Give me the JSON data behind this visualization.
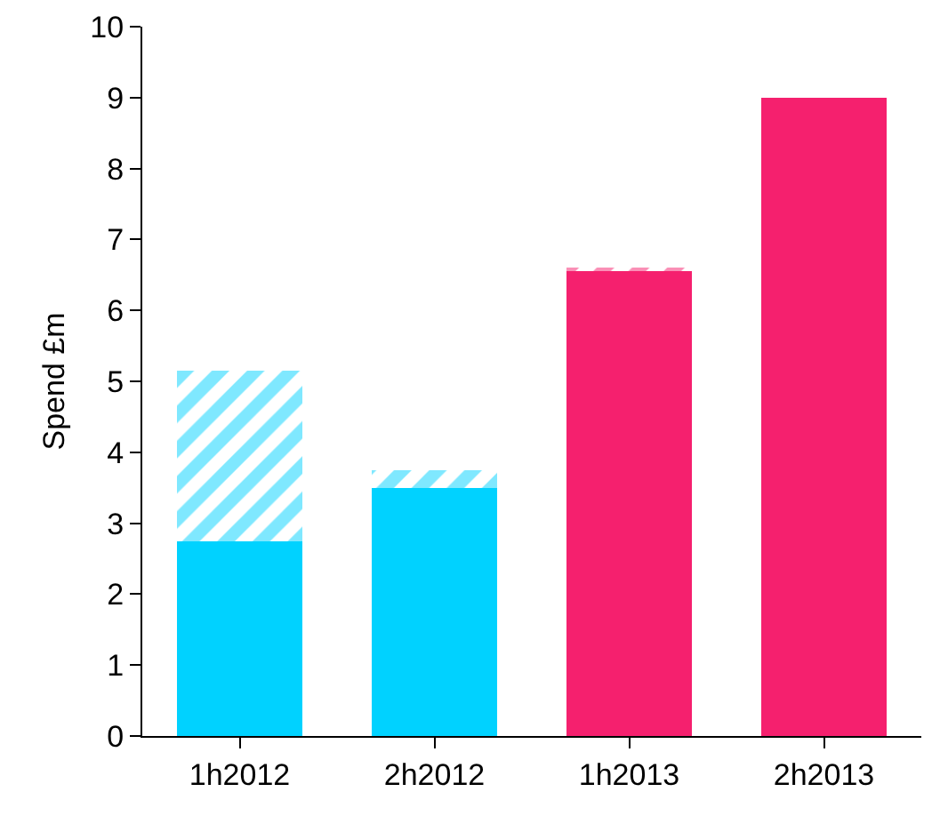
{
  "chart_data": {
    "type": "bar",
    "stacked": true,
    "ylabel": "Spend £m",
    "categories": [
      "1h2012",
      "2h2012",
      "1h2013",
      "2h2013"
    ],
    "series": [
      {
        "colors": [
          "#00d2ff",
          "#00d2ff",
          "#f5206e",
          "#f5206e"
        ],
        "values": [
          2.75,
          3.5,
          6.55,
          9
        ]
      },
      {
        "colors": [
          "#00d2ff",
          "#00d2ff",
          "#f5206e",
          "#f5206e"
        ],
        "values": [
          2.4,
          0.25,
          0.05,
          0
        ]
      }
    ],
    "ylim": [
      0,
      10
    ],
    "yticks": [
      0,
      1,
      2,
      3,
      4,
      5,
      6,
      7,
      8,
      9,
      10
    ],
    "grid": false
  }
}
